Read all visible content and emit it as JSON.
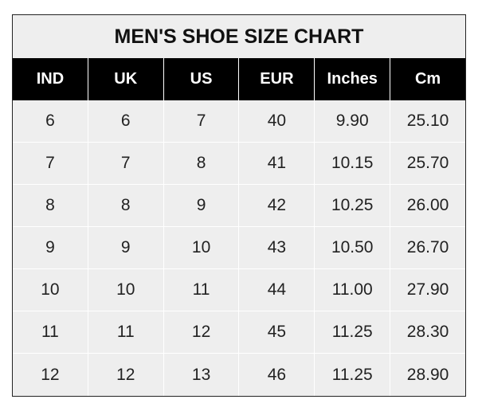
{
  "chart_data": {
    "type": "table",
    "title": "MEN'S SHOE SIZE CHART",
    "columns": [
      "IND",
      "UK",
      "US",
      "EUR",
      "Inches",
      "Cm"
    ],
    "rows": [
      [
        "6",
        "6",
        "7",
        "40",
        "9.90",
        "25.10"
      ],
      [
        "7",
        "7",
        "8",
        "41",
        "10.15",
        "25.70"
      ],
      [
        "8",
        "8",
        "9",
        "42",
        "10.25",
        "26.00"
      ],
      [
        "9",
        "9",
        "10",
        "43",
        "10.50",
        "26.70"
      ],
      [
        "10",
        "10",
        "11",
        "44",
        "11.00",
        "27.90"
      ],
      [
        "11",
        "11",
        "12",
        "45",
        "11.25",
        "28.30"
      ],
      [
        "12",
        "12",
        "13",
        "46",
        "11.25",
        "28.90"
      ]
    ]
  },
  "colors": {
    "header_bg": "#000000",
    "body_bg": "#eeeeee",
    "grid": "#ffffff"
  }
}
